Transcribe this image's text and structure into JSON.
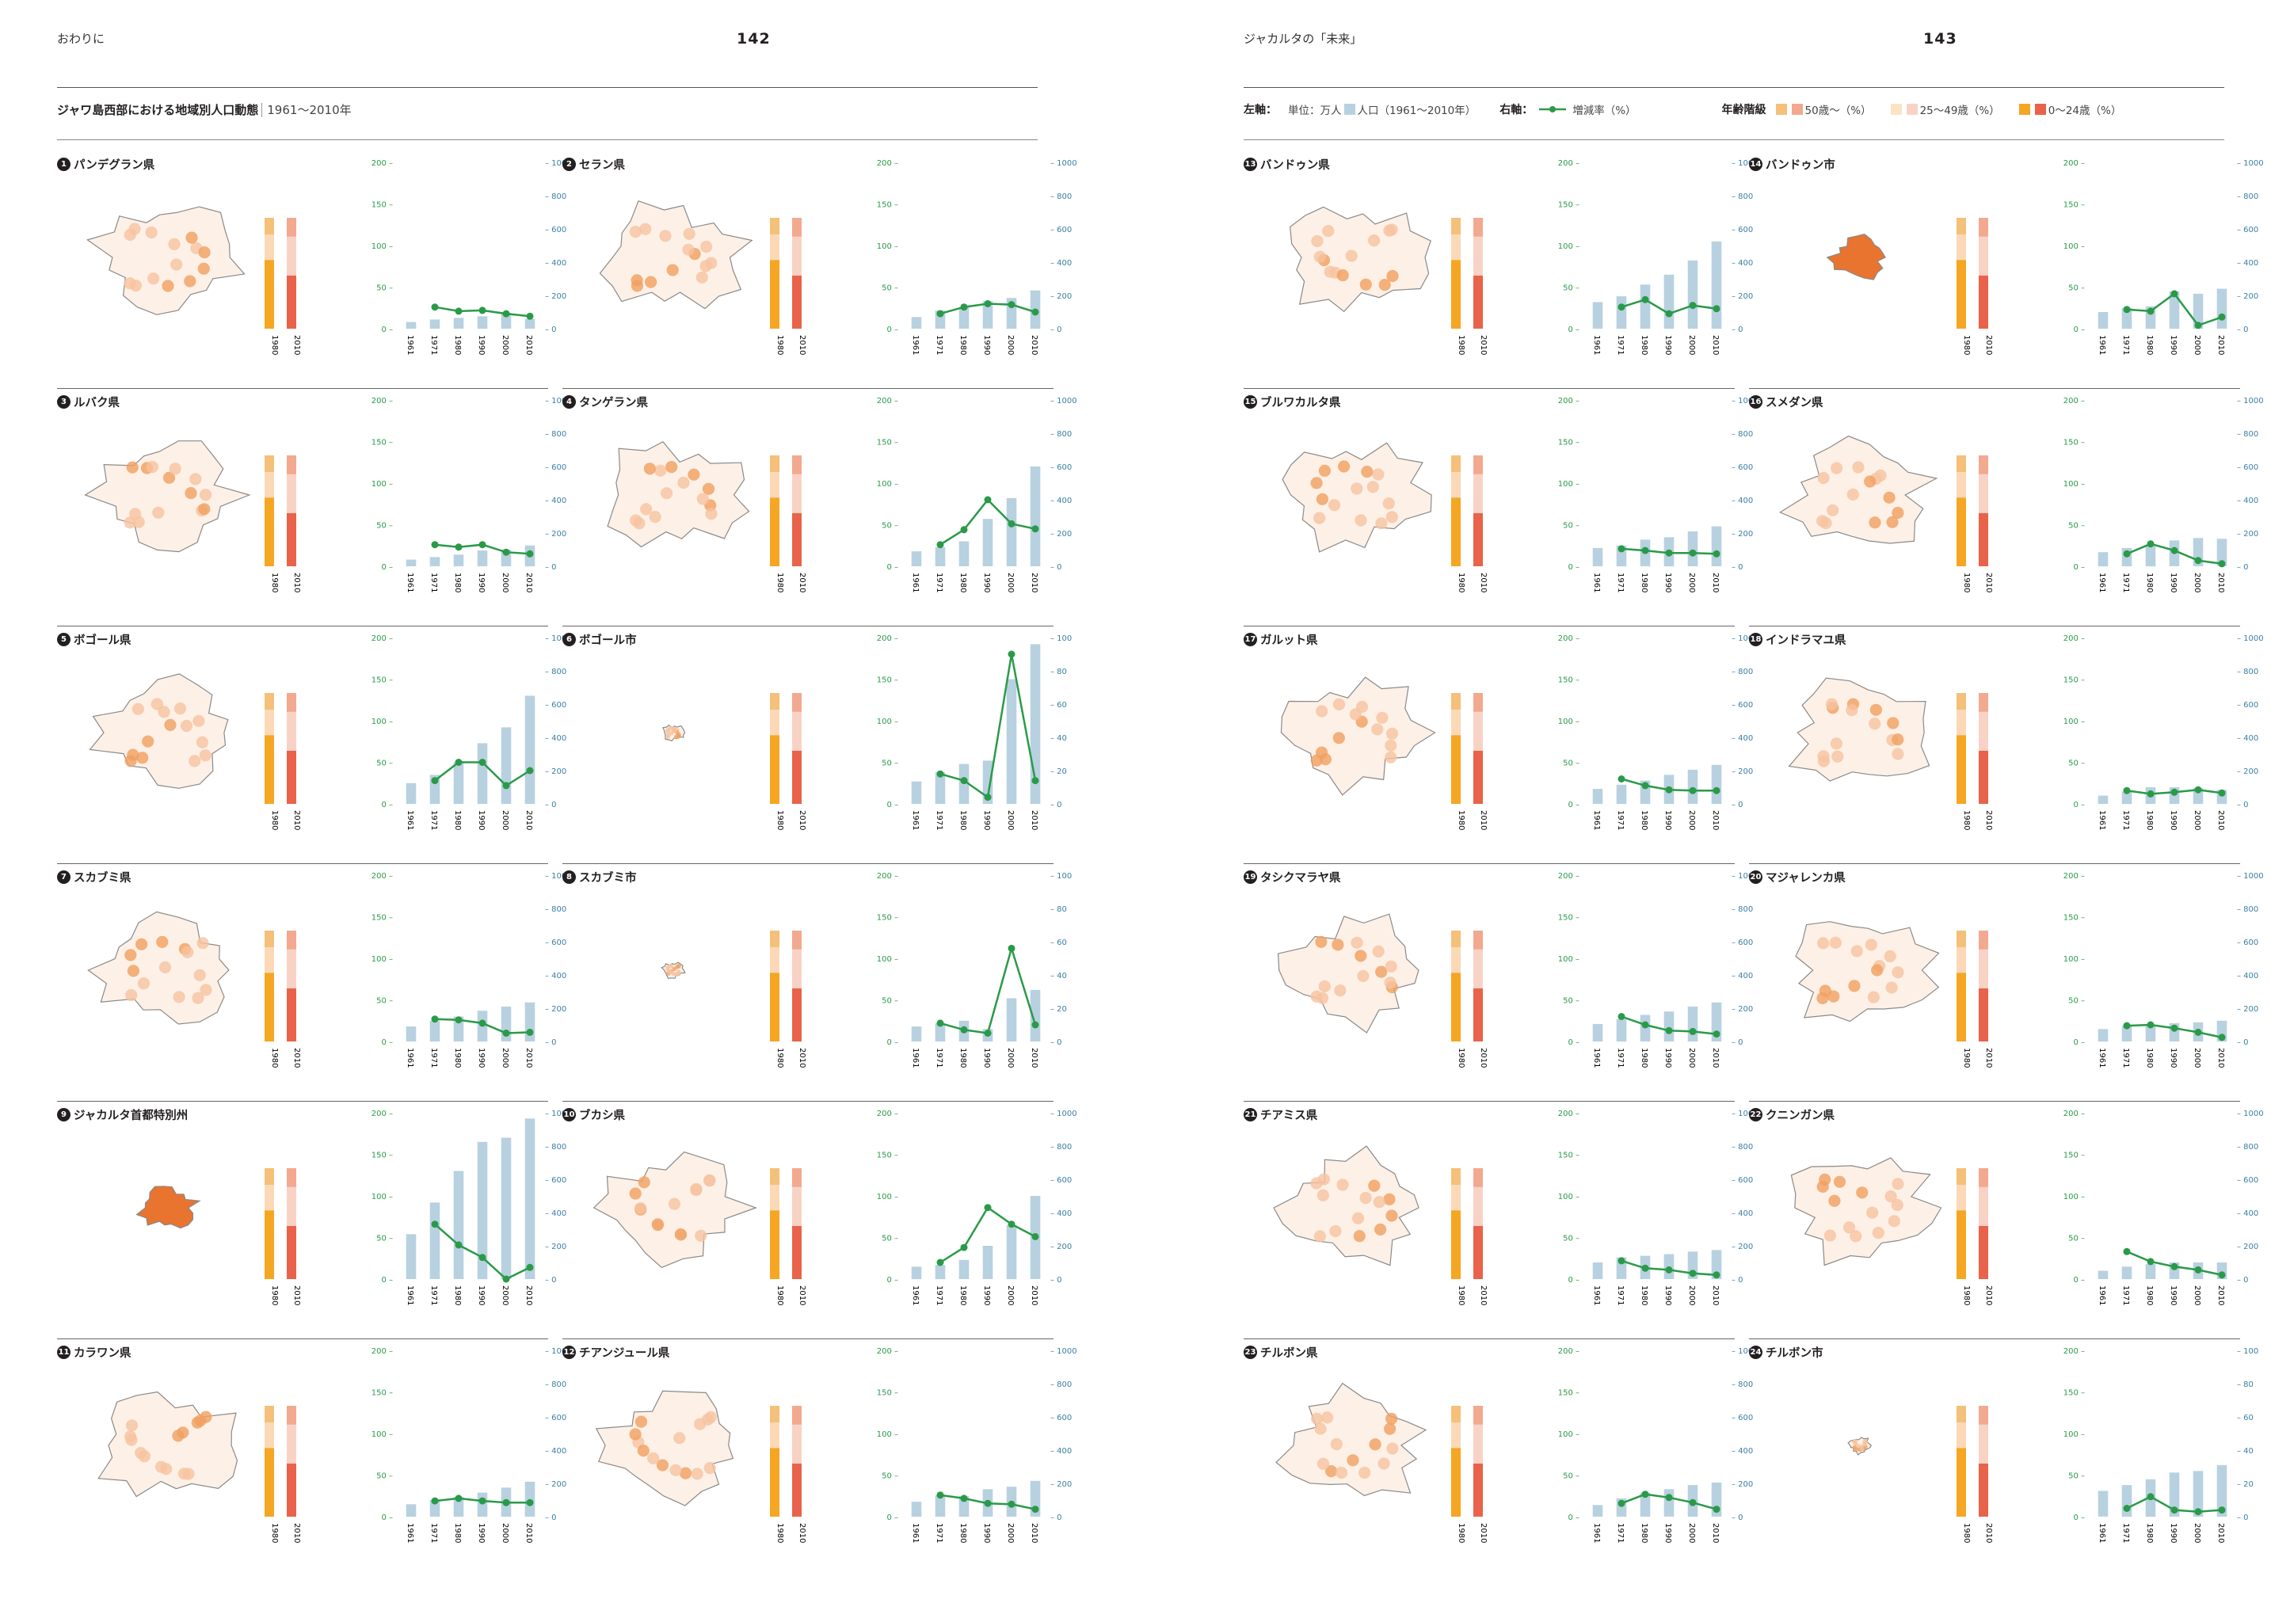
{
  "colors": {
    "bar": "#b8d1e0",
    "line": "#2a9a48",
    "left_axis": "#2a9a48",
    "right_axis": "#3b7fa3",
    "age_50plus": "#f4c07a",
    "age_25_49": "#fbd9b7",
    "age_0_24_1980": "#f5a623",
    "age_50plus_2010": "#f2a98f",
    "age_25_49_2010": "#f9d2c6",
    "age_0_24_2010": "#e8634a",
    "map_outline": "#8a8a8a"
  },
  "left_page": {
    "header_left": "おわりに",
    "page_number": "142",
    "subtitle": "ジャワ島西部における地域別人口動態",
    "subtitle_range": "1961〜2010年"
  },
  "right_page": {
    "header_left": "ジャカルタの「未来」",
    "page_number": "143",
    "legend": {
      "left_axis_label": "左軸：",
      "unit_label": "単位：万人",
      "population_label": "人口（1961〜2010年）",
      "right_axis_label": "右軸：",
      "growth_label": "増減率（%）",
      "age_title": "年齢階級",
      "age_50": "50歳〜（%）",
      "age_25": "25〜49歳（%）",
      "age_0": "0〜24歳（%）"
    }
  },
  "chart_data": {
    "type": "bar",
    "description_axes": {
      "left_ticks": [
        "200",
        "150",
        "100",
        "50",
        "0"
      ],
      "right_ticks_default": [
        "1000",
        "800",
        "600",
        "400",
        "200",
        "0"
      ],
      "right_ticks_small": [
        "100",
        "80",
        "60",
        "40",
        "20",
        "0"
      ],
      "bar_years": [
        "1961",
        "1971",
        "1980",
        "1990",
        "2000",
        "2010"
      ],
      "age_years": [
        "1980",
        "2010"
      ]
    },
    "panels": [
      {
        "num": "1",
        "name": "パンデグラン県",
        "right_scale": "default",
        "pop": [
          8,
          11,
          13,
          15,
          19,
          12
        ],
        "growth": [
          130,
          105,
          110,
          90,
          75
        ]
      },
      {
        "num": "2",
        "name": "セラン県",
        "right_scale": "default",
        "pop": [
          14,
          22,
          26,
          33,
          37,
          46
        ],
        "growth": [
          90,
          130,
          150,
          145,
          100
        ]
      },
      {
        "num": "3",
        "name": "ルバク県",
        "right_scale": "default",
        "pop": [
          8,
          11,
          14,
          19,
          20,
          25
        ],
        "growth": [
          130,
          115,
          130,
          85,
          75
        ]
      },
      {
        "num": "4",
        "name": "タンゲラン県",
        "right_scale": "default",
        "pop": [
          18,
          23,
          30,
          57,
          82,
          120
        ],
        "growth": [
          130,
          220,
          400,
          255,
          225
        ]
      },
      {
        "num": "5",
        "name": "ボゴール県",
        "right_scale": "default",
        "pop": [
          25,
          35,
          50,
          73,
          92,
          130
        ],
        "growth": [
          140,
          250,
          250,
          110,
          200
        ]
      },
      {
        "num": "6",
        "name": "ボゴール市",
        "right_scale": "small",
        "pop": [
          27,
          38,
          48,
          52,
          150,
          192
        ],
        "growth": [
          18,
          14,
          4,
          90,
          14
        ]
      },
      {
        "num": "7",
        "name": "スカブミ県",
        "right_scale": "default",
        "pop": [
          18,
          25,
          30,
          37,
          42,
          47
        ],
        "growth": [
          135,
          130,
          110,
          50,
          55
        ]
      },
      {
        "num": "8",
        "name": "スカブミ市",
        "right_scale": "small",
        "pop": [
          18,
          22,
          25,
          15,
          52,
          62
        ],
        "growth": [
          11,
          7,
          5,
          56,
          10
        ]
      },
      {
        "num": "9",
        "name": "ジャカルタ首都特別州",
        "right_scale": "default",
        "pop": [
          54,
          92,
          130,
          165,
          170,
          193
        ],
        "growth": [
          330,
          205,
          130,
          0,
          70
        ]
      },
      {
        "num": "10",
        "name": "ブカシ県",
        "right_scale": "default",
        "pop": [
          15,
          17,
          23,
          40,
          65,
          100
        ],
        "growth": [
          100,
          190,
          430,
          330,
          255
        ]
      },
      {
        "num": "11",
        "name": "カラワン県",
        "right_scale": "default",
        "pop": [
          15,
          20,
          24,
          29,
          35,
          42
        ],
        "growth": [
          95,
          110,
          95,
          85,
          85
        ]
      },
      {
        "num": "12",
        "name": "チアンジュール県",
        "right_scale": "default",
        "pop": [
          18,
          26,
          25,
          33,
          36,
          43
        ],
        "growth": [
          130,
          110,
          80,
          75,
          45
        ]
      },
      {
        "num": "13",
        "name": "バンドゥン県",
        "right_scale": "default",
        "pop": [
          32,
          39,
          53,
          65,
          82,
          105
        ],
        "growth": [
          130,
          175,
          90,
          140,
          120
        ]
      },
      {
        "num": "14",
        "name": "バンドゥン市",
        "right_scale": "default",
        "pop": [
          20,
          25,
          27,
          45,
          42,
          48
        ],
        "growth": [
          115,
          105,
          210,
          20,
          70
        ]
      },
      {
        "num": "15",
        "name": "ブルワカルタ県",
        "right_scale": "default",
        "pop": [
          22,
          25,
          32,
          35,
          42,
          48
        ],
        "growth": [
          105,
          95,
          80,
          80,
          75
        ]
      },
      {
        "num": "16",
        "name": "スメダン県",
        "right_scale": "default",
        "pop": [
          17,
          22,
          25,
          31,
          34,
          33
        ],
        "growth": [
          75,
          135,
          95,
          35,
          15
        ]
      },
      {
        "num": "17",
        "name": "ガルット県",
        "right_scale": "default",
        "pop": [
          18,
          23,
          28,
          35,
          41,
          47
        ],
        "growth": [
          150,
          110,
          85,
          80,
          80
        ]
      },
      {
        "num": "18",
        "name": "インドラマユ県",
        "right_scale": "default",
        "pop": [
          10,
          15,
          20,
          20,
          19,
          17
        ],
        "growth": [
          80,
          60,
          70,
          85,
          65
        ]
      },
      {
        "num": "19",
        "name": "タシクマラヤ県",
        "right_scale": "default",
        "pop": [
          21,
          27,
          32,
          36,
          42,
          47
        ],
        "growth": [
          150,
          100,
          65,
          60,
          45
        ]
      },
      {
        "num": "20",
        "name": "マジャレンカ県",
        "right_scale": "default",
        "pop": [
          15,
          19,
          20,
          22,
          23,
          25
        ],
        "growth": [
          95,
          100,
          80,
          55,
          25
        ]
      },
      {
        "num": "21",
        "name": "チアミス県",
        "right_scale": "default",
        "pop": [
          20,
          26,
          28,
          30,
          33,
          35
        ],
        "growth": [
          110,
          65,
          55,
          35,
          25
        ]
      },
      {
        "num": "22",
        "name": "クニンガン県",
        "right_scale": "default",
        "pop": [
          10,
          15,
          18,
          20,
          20,
          20
        ],
        "growth": [
          165,
          105,
          75,
          55,
          25
        ]
      },
      {
        "num": "23",
        "name": "チルボン県",
        "right_scale": "default",
        "pop": [
          14,
          22,
          29,
          33,
          38,
          41
        ],
        "growth": [
          80,
          135,
          115,
          85,
          45
        ]
      },
      {
        "num": "24",
        "name": "チルボン市",
        "right_scale": "small",
        "pop": [
          31,
          38,
          45,
          53,
          55,
          62
        ],
        "growth": [
          5,
          12,
          4,
          3,
          4
        ]
      }
    ],
    "age_structure_percent": {
      "1980": {
        "0_24": 62,
        "25_49": 23,
        "50plus": 15
      },
      "2010": {
        "0_24": 48,
        "25_49": 35,
        "50plus": 17
      }
    }
  }
}
